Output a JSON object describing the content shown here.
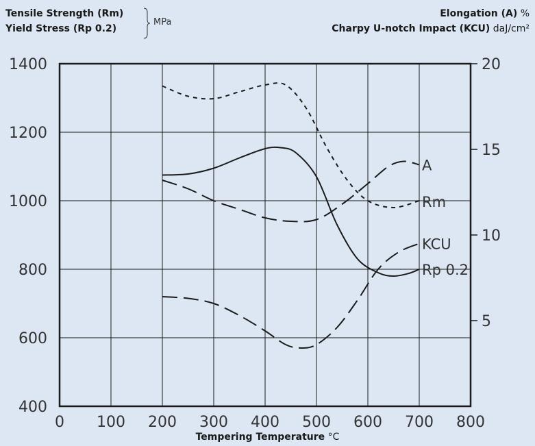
{
  "header": {
    "left_line1": "Tensile Strength (Rm)",
    "left_line2": "Yield Stress (Rp 0.2)",
    "left_unit": "MPa",
    "right_line1": "Elongation (A)",
    "right_line1_unit": "%",
    "right_line2": "Charpy U-notch Impact (KCU)",
    "right_line2_unit": "daJ/cm²"
  },
  "chart_data": {
    "type": "line",
    "xlabel": "Tempering Temperature",
    "xlabel_unit": "°C",
    "xlim": [
      0,
      800
    ],
    "x_ticks": [
      "0",
      "100",
      "200",
      "300",
      "400",
      "500",
      "600",
      "700",
      "800"
    ],
    "ylim_left": [
      400,
      1400
    ],
    "y_ticks_left": [
      "400",
      "600",
      "800",
      "1000",
      "1200",
      "1400"
    ],
    "ylim_right": [
      0,
      20
    ],
    "y_ticks_right": [
      "5",
      "10",
      "15",
      "20"
    ],
    "grid": true,
    "series": [
      {
        "name": "Rm",
        "axis": "left",
        "style": "short-dash",
        "x": [
          200,
          250,
          300,
          350,
          400,
          440,
          480,
          520,
          560,
          600,
          650,
          700
        ],
        "y": [
          1335,
          1305,
          1298,
          1318,
          1338,
          1338,
          1270,
          1155,
          1060,
          1000,
          980,
          1000
        ]
      },
      {
        "name": "Rp 0.2",
        "axis": "left",
        "style": "solid",
        "x": [
          200,
          250,
          300,
          350,
          400,
          430,
          460,
          500,
          540,
          580,
          620,
          650,
          680,
          700
        ],
        "y": [
          1075,
          1078,
          1095,
          1125,
          1152,
          1155,
          1140,
          1070,
          930,
          830,
          790,
          780,
          788,
          800
        ]
      },
      {
        "name": "A",
        "axis": "right",
        "style": "long-dash",
        "x": [
          200,
          250,
          300,
          350,
          400,
          450,
          500,
          550,
          600,
          640,
          670,
          700
        ],
        "y": [
          13.2,
          12.7,
          12.0,
          11.5,
          11.0,
          10.8,
          10.9,
          11.8,
          13.0,
          14.0,
          14.3,
          14.1
        ]
      },
      {
        "name": "KCU",
        "axis": "right",
        "style": "long-dash",
        "x": [
          200,
          250,
          300,
          350,
          400,
          440,
          470,
          500,
          540,
          580,
          620,
          660,
          700
        ],
        "y": [
          6.4,
          6.3,
          6.0,
          5.3,
          4.4,
          3.6,
          3.4,
          3.6,
          4.6,
          6.2,
          8.0,
          9.0,
          9.5
        ]
      }
    ],
    "line_labels": [
      "A",
      "Rm",
      "KCU",
      "Rp 0.2"
    ]
  }
}
